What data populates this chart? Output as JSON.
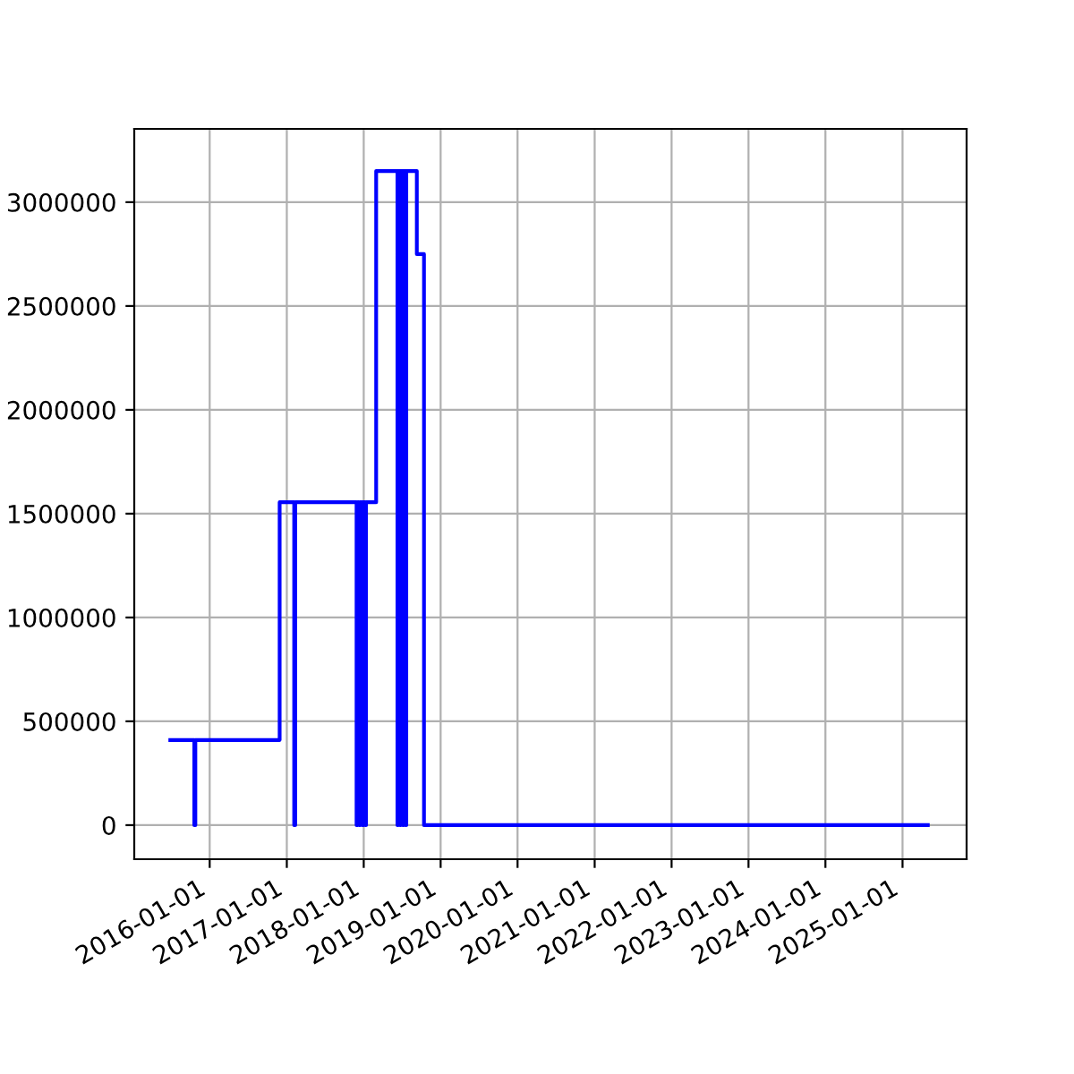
{
  "chart_data": {
    "type": "step",
    "grid": true,
    "x": [
      "2015-06-28",
      "2015-10-20",
      "2015-10-25",
      "2016-11-28",
      "2017-02-05",
      "2017-02-10",
      "2017-11-28",
      "2017-12-03",
      "2017-12-10",
      "2017-12-15",
      "2017-12-25",
      "2018-01-01",
      "2018-01-08",
      "2018-01-12",
      "2018-03-01",
      "2018-06-10",
      "2018-06-14",
      "2018-06-22",
      "2018-06-26",
      "2018-07-05",
      "2018-07-10",
      "2018-07-18",
      "2018-07-22",
      "2018-09-10",
      "2018-10-14",
      "2025-05-01"
    ],
    "series": [
      {
        "color": "#0000ff",
        "values": [
          410000,
          0,
          410000,
          1555000,
          0,
          1555000,
          0,
          1555000,
          0,
          1555000,
          0,
          1555000,
          0,
          1555000,
          3150000,
          0,
          3150000,
          0,
          3150000,
          0,
          3150000,
          0,
          3150000,
          2750000,
          0,
          0
        ]
      }
    ],
    "xlim": [
      "2015-01-08",
      "2025-11-01"
    ],
    "xticks": [
      {
        "value": "2016-01-01",
        "label": "2016-01-01"
      },
      {
        "value": "2017-01-01",
        "label": "2017-01-01"
      },
      {
        "value": "2018-01-01",
        "label": "2018-01-01"
      },
      {
        "value": "2019-01-01",
        "label": "2019-01-01"
      },
      {
        "value": "2020-01-01",
        "label": "2020-01-01"
      },
      {
        "value": "2021-01-01",
        "label": "2021-01-01"
      },
      {
        "value": "2022-01-01",
        "label": "2022-01-01"
      },
      {
        "value": "2023-01-01",
        "label": "2023-01-01"
      },
      {
        "value": "2024-01-01",
        "label": "2024-01-01"
      },
      {
        "value": "2025-01-01",
        "label": "2025-01-01"
      }
    ],
    "ylim": [
      -164000,
      3353000
    ],
    "yticks": [
      0,
      500000,
      1000000,
      1500000,
      2000000,
      2500000,
      3000000
    ]
  }
}
